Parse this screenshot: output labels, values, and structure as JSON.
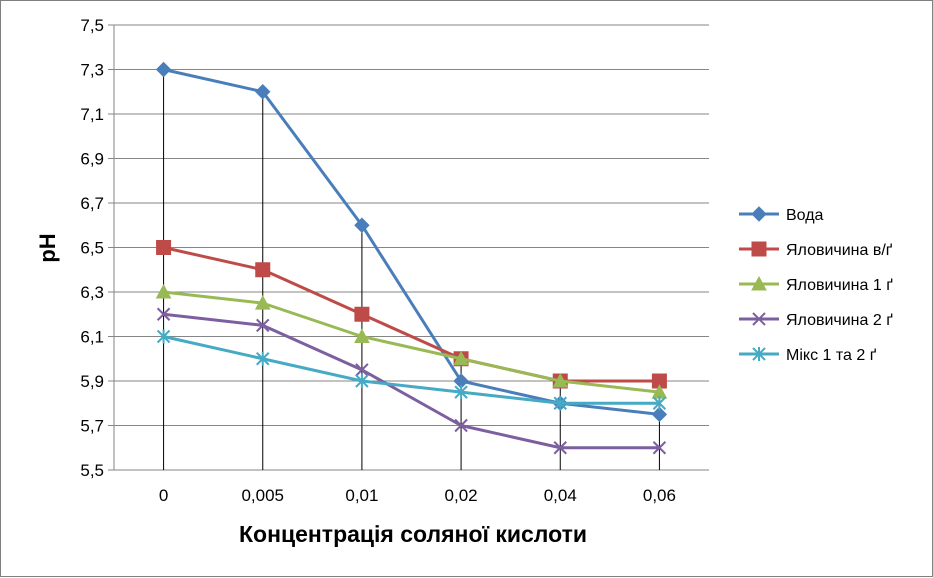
{
  "chart_data": {
    "type": "line",
    "title": "",
    "xlabel": "Концентрація соляної кислоти",
    "ylabel": "pH",
    "categories": [
      "0",
      "0,005",
      "0,01",
      "0,02",
      "0,04",
      "0,06"
    ],
    "ylim": [
      5.5,
      7.5
    ],
    "ytick_values": [
      5.5,
      5.7,
      5.9,
      6.1,
      6.3,
      6.5,
      6.7,
      6.9,
      7.1,
      7.3,
      7.5
    ],
    "ytick_labels": [
      "5,5",
      "5,7",
      "5,9",
      "6,1",
      "6,3",
      "6,5",
      "6,7",
      "6,9",
      "7,1",
      "7,3",
      "7,5"
    ],
    "grid": "horizontal major gridlines; vertical drop lines at each category",
    "legend_position": "right",
    "series": [
      {
        "name": "Вода",
        "values": [
          7.3,
          7.2,
          6.6,
          5.9,
          5.8,
          5.75
        ],
        "color": "#4a7ebb",
        "marker": "diamond"
      },
      {
        "name": "Яловичина в/ґ",
        "values": [
          6.5,
          6.4,
          6.2,
          6.0,
          5.9,
          5.9
        ],
        "color": "#be4b48",
        "marker": "square"
      },
      {
        "name": "Яловичина 1 ґ",
        "values": [
          6.3,
          6.25,
          6.1,
          6.0,
          5.9,
          5.85
        ],
        "color": "#98b954",
        "marker": "triangle"
      },
      {
        "name": "Яловичина 2 ґ",
        "values": [
          6.2,
          6.15,
          5.95,
          5.7,
          5.6,
          5.6
        ],
        "color": "#7d5fa0",
        "marker": "x"
      },
      {
        "name": "Мікс 1 та 2 ґ",
        "values": [
          6.1,
          6.0,
          5.9,
          5.85,
          5.8,
          5.8
        ],
        "color": "#46aac5",
        "marker": "star"
      }
    ]
  }
}
